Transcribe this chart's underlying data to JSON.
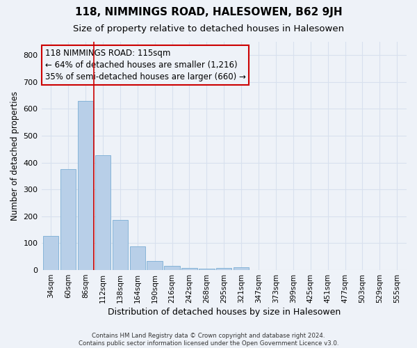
{
  "title": "118, NIMMINGS ROAD, HALESOWEN, B62 9JH",
  "subtitle": "Size of property relative to detached houses in Halesowen",
  "xlabel": "Distribution of detached houses by size in Halesowen",
  "ylabel": "Number of detached properties",
  "categories": [
    "34sqm",
    "60sqm",
    "86sqm",
    "112sqm",
    "138sqm",
    "164sqm",
    "190sqm",
    "216sqm",
    "242sqm",
    "268sqm",
    "295sqm",
    "321sqm",
    "347sqm",
    "373sqm",
    "399sqm",
    "425sqm",
    "451sqm",
    "477sqm",
    "503sqm",
    "529sqm",
    "555sqm"
  ],
  "values": [
    128,
    375,
    630,
    428,
    186,
    88,
    35,
    15,
    8,
    5,
    8,
    10,
    0,
    0,
    0,
    0,
    0,
    0,
    0,
    0,
    0
  ],
  "bar_color": "#b8cfe8",
  "bar_edgecolor": "#7aadd4",
  "vline_x": 2.5,
  "vline_color": "#cc0000",
  "annotation_line1": "118 NIMMINGS ROAD: 115sqm",
  "annotation_line2": "← 64% of detached houses are smaller (1,216)",
  "annotation_line3": "35% of semi-detached houses are larger (660) →",
  "box_edgecolor": "#cc0000",
  "ylim": [
    0,
    850
  ],
  "yticks": [
    0,
    100,
    200,
    300,
    400,
    500,
    600,
    700,
    800
  ],
  "background_color": "#eef2f8",
  "grid_color": "#d8e0ee",
  "title_fontsize": 11,
  "subtitle_fontsize": 9.5,
  "xlabel_fontsize": 9,
  "ylabel_fontsize": 8.5,
  "tick_fontsize": 7.5,
  "annotation_fontsize": 8.5,
  "footer_text": "Contains HM Land Registry data © Crown copyright and database right 2024.\nContains public sector information licensed under the Open Government Licence v3.0."
}
